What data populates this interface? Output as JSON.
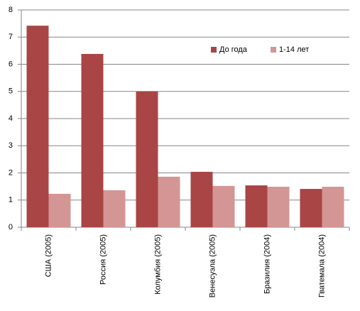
{
  "chart_data": {
    "type": "bar",
    "categories": [
      "США (2005)",
      "Россия (2005)",
      "Колумбия  (2005)",
      "Венесуэла (2005)",
      "Бразилия (2004)",
      "Гватемала (2004)"
    ],
    "series": [
      {
        "name": "До года",
        "color": "#a94545",
        "values": [
          7.42,
          6.38,
          5.0,
          2.04,
          1.54,
          1.41
        ]
      },
      {
        "name": "1-14 лет",
        "color": "#d49595",
        "values": [
          1.23,
          1.36,
          1.86,
          1.52,
          1.49,
          1.49
        ]
      }
    ],
    "ylim": [
      0,
      8
    ],
    "yticks": [
      0,
      1,
      2,
      3,
      4,
      5,
      6,
      7,
      8
    ],
    "grid": true,
    "legend": "upper-right"
  }
}
